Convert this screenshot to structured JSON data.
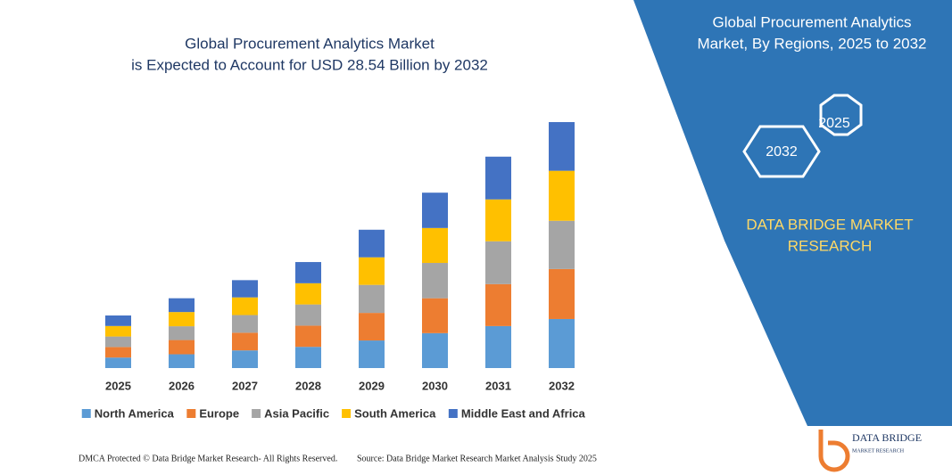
{
  "chart_data": {
    "type": "stacked_bar",
    "title": [
      "Global Procurement Analytics Market",
      "is Expected to Account for USD 28.54 Billion by 2032"
    ],
    "categories": [
      "2025",
      "2026",
      "2027",
      "2028",
      "2029",
      "2030",
      "2031",
      "2032"
    ],
    "series": [
      {
        "name": "North America",
        "color": "#5b9bd5",
        "values": [
          1.22,
          1.6,
          2.05,
          2.46,
          3.2,
          4.05,
          4.87,
          5.69
        ]
      },
      {
        "name": "Europe",
        "color": "#ed7d31",
        "values": [
          1.22,
          1.65,
          2.05,
          2.46,
          3.2,
          4.05,
          4.87,
          5.8
        ]
      },
      {
        "name": "Asia Pacific",
        "color": "#a5a5a5",
        "values": [
          1.22,
          1.6,
          2.05,
          2.46,
          3.25,
          4.1,
          4.97,
          5.6
        ]
      },
      {
        "name": "South America",
        "color": "#ffc000",
        "values": [
          1.22,
          1.65,
          2.05,
          2.46,
          3.2,
          4.05,
          4.86,
          5.8
        ]
      },
      {
        "name": "Middle East and Africa",
        "color": "#4472c4",
        "values": [
          1.22,
          1.6,
          2.0,
          2.46,
          3.2,
          4.1,
          4.96,
          5.65
        ]
      }
    ],
    "legend": "bottom"
  },
  "panel": {
    "title": [
      "Global Procurement Analytics",
      "Market, By Regions, 2025 to 2032"
    ],
    "hexagons": [
      "2025",
      "2032"
    ],
    "brand": [
      "DATA BRIDGE MARKET",
      "RESEARCH"
    ]
  },
  "footer": {
    "left": "DMCA Protected © Data Bridge Market Research- All Rights Reserved.",
    "right": "Source: Data Bridge Market Research  Market Analysis Study 2025",
    "logo": [
      "DATA BRIDGE",
      "MARKET RESEARCH"
    ]
  }
}
